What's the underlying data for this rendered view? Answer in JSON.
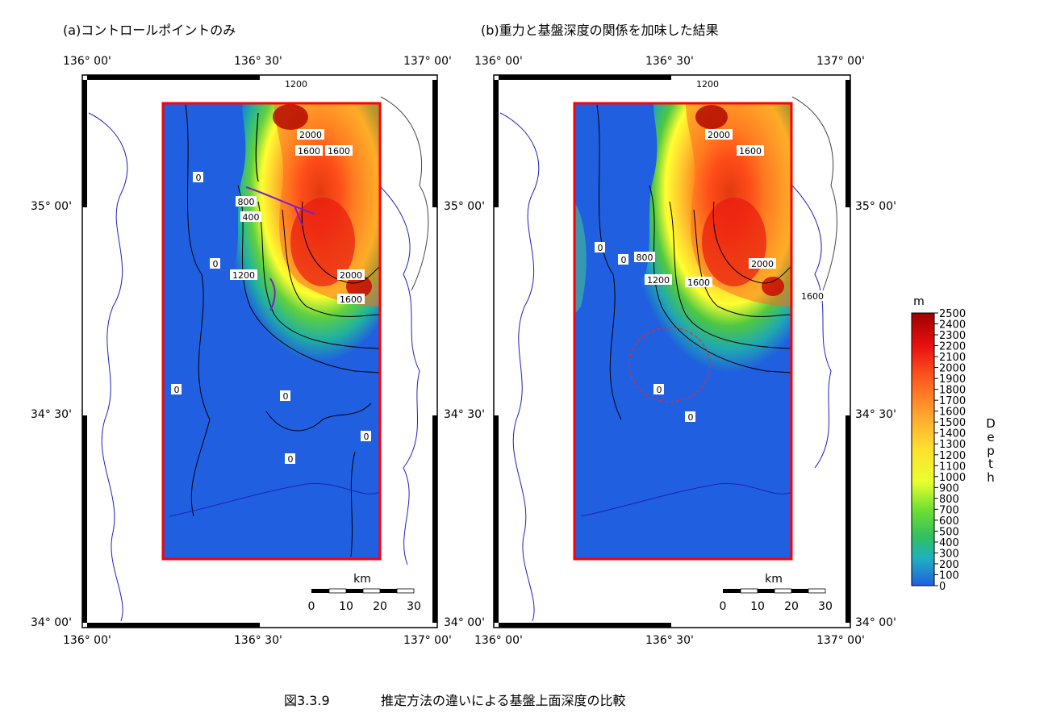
{
  "figure": {
    "caption_number": "図3.3.9",
    "caption_text": "推定方法の違いによる基盤上面深度の比較"
  },
  "panels": [
    {
      "id": "a",
      "title": "(a)コントロールポイントのみ",
      "contour_labels": [
        "0",
        "0",
        "0",
        "0",
        "0",
        "0",
        "400",
        "800",
        "1600",
        "1200",
        "1200",
        "1600",
        "1600",
        "2000",
        "2000"
      ]
    },
    {
      "id": "b",
      "title": "(b)重力と基盤深度の関係を加味した結果",
      "contour_labels": [
        "0",
        "0",
        "0",
        "0",
        "800",
        "1200",
        "1600",
        "1200",
        "1600",
        "1600",
        "2000",
        "2000"
      ]
    }
  ],
  "axes": {
    "lon_ticks": [
      "136° 00'",
      "136° 30'",
      "137° 00'"
    ],
    "lat_ticks": [
      "35° 00'",
      "34° 30'",
      "34° 00'"
    ]
  },
  "scale_bar": {
    "unit": "km",
    "labels": [
      "0",
      "10",
      "20",
      "30"
    ]
  },
  "colorbar": {
    "unit": "m",
    "label": "Depth",
    "label_chars": [
      "D",
      "e",
      "p",
      "t",
      "h"
    ],
    "ticks": [
      "2500",
      "2400",
      "2300",
      "2200",
      "2100",
      "2000",
      "1900",
      "1800",
      "1700",
      "1600",
      "1500",
      "1400",
      "1300",
      "1200",
      "1100",
      "1000",
      "900",
      "800",
      "700",
      "600",
      "500",
      "400",
      "300",
      "200",
      "100",
      "0"
    ],
    "colors": {
      "low": "#1f5fe0",
      "mid_low": "#30c050",
      "mid": "#ffff30",
      "mid_high": "#ff9020",
      "high": "#a00000"
    }
  },
  "colors": {
    "study_frame": "#ff0000",
    "coast": "#2020c0",
    "contour": "#000000"
  }
}
